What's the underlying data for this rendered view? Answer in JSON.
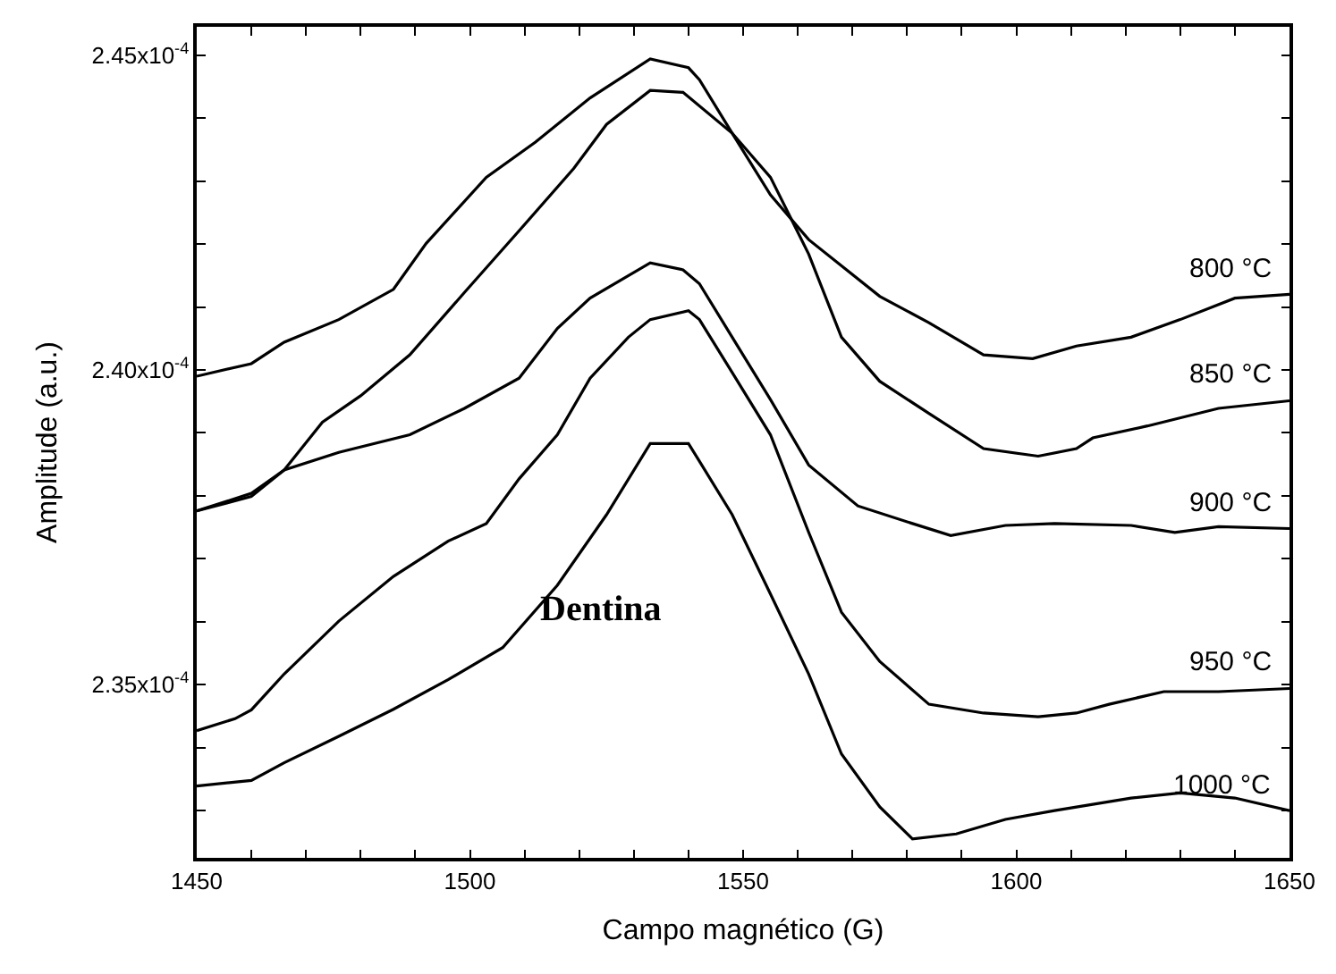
{
  "chart_data": {
    "type": "line",
    "xlabel": "Campo magnético (G)",
    "ylabel": "Amplitude (a.u.)",
    "annotations": [
      "Dentina"
    ],
    "xlim": [
      1450,
      1650
    ],
    "ylim": [
      0.00023225,
      0.00024545
    ],
    "xticks": [
      1450,
      {
        "value": 1460,
        "label": null
      },
      {
        "value": 1470,
        "label": null
      },
      {
        "value": 1480,
        "label": null
      },
      {
        "value": 1490,
        "label": null
      },
      1500,
      {
        "value": 1510,
        "label": null
      },
      {
        "value": 1520,
        "label": null
      },
      {
        "value": 1530,
        "label": null
      },
      {
        "value": 1540,
        "label": null
      },
      1550,
      {
        "value": 1560,
        "label": null
      },
      {
        "value": 1570,
        "label": null
      },
      {
        "value": 1580,
        "label": null
      },
      {
        "value": 1590,
        "label": null
      },
      1600,
      {
        "value": 1610,
        "label": null
      },
      {
        "value": 1620,
        "label": null
      },
      {
        "value": 1630,
        "label": null
      },
      {
        "value": 1640,
        "label": null
      },
      1650
    ],
    "yticks": [
      {
        "value": 0.000233,
        "label": null
      },
      {
        "value": 0.000234,
        "label": null
      },
      {
        "value": 0.000235,
        "label": "2.35x10$^{-4}$"
      },
      {
        "value": 0.000236,
        "label": null
      },
      {
        "value": 0.000237,
        "label": null
      },
      {
        "value": 0.000238,
        "label": null
      },
      {
        "value": 0.000239,
        "label": null
      },
      {
        "value": 0.00024,
        "label": "2.40x10$^{-4}$"
      },
      {
        "value": 0.000241,
        "label": null
      },
      {
        "value": 0.000242,
        "label": null
      },
      {
        "value": 0.000243,
        "label": null
      },
      {
        "value": 0.000244,
        "label": null
      },
      {
        "value": 0.000245,
        "label": "2.45x10$^{-4}$"
      }
    ],
    "legend": "right",
    "marker": "none",
    "line_style": "solid",
    "series": [
      {
        "name": "800 °C",
        "color": "#000000",
        "x": [
          1450,
          1460,
          1466,
          1476,
          1486,
          1492,
          1503,
          1512,
          1522,
          1533,
          1540,
          1542,
          1548,
          1555,
          1562,
          1575,
          1584,
          1594,
          1603,
          1611,
          1621,
          1630,
          1640,
          1650
        ],
        "values": [
          0.0002399,
          0.0002401,
          0.00024044,
          0.0002408,
          0.00024128,
          0.00024201,
          0.00024306,
          0.00024362,
          0.00024432,
          0.00024494,
          0.0002448,
          0.00024461,
          0.00024376,
          0.00024278,
          0.00024207,
          0.00024117,
          0.00024075,
          0.00024024,
          0.00024018,
          0.00024038,
          0.00024052,
          0.0002408,
          0.00024114,
          0.0002412
        ]
      },
      {
        "name": "850 °C",
        "color": "#000000",
        "x": [
          1450,
          1460,
          1466,
          1473,
          1480,
          1489,
          1499,
          1509,
          1519,
          1525,
          1533,
          1539,
          1548,
          1555,
          1562,
          1568,
          1575,
          1584,
          1594,
          1604,
          1611,
          1614,
          1624,
          1637,
          1650
        ],
        "values": [
          0.00023776,
          0.00023804,
          0.00023841,
          0.00023917,
          0.00023959,
          0.00024024,
          0.00024123,
          0.00024221,
          0.0002432,
          0.0002439,
          0.00024444,
          0.00024441,
          0.00024376,
          0.00024306,
          0.00024184,
          0.00024052,
          0.00023982,
          0.00023931,
          0.00023875,
          0.00023863,
          0.00023875,
          0.00023892,
          0.00023911,
          0.00023939,
          0.00023951
        ]
      },
      {
        "name": "900 °C",
        "color": "#000000",
        "x": [
          1450,
          1460,
          1466,
          1476,
          1489,
          1499,
          1509,
          1516,
          1522,
          1533,
          1539,
          1542,
          1548,
          1555,
          1562,
          1571,
          1581,
          1588,
          1598,
          1607,
          1621,
          1629,
          1637,
          1650
        ],
        "values": [
          0.00023776,
          0.00023799,
          0.00023841,
          0.00023869,
          0.00023897,
          0.00023939,
          0.00023987,
          0.00024066,
          0.00024114,
          0.0002417,
          0.00024159,
          0.00024137,
          0.00024052,
          0.00023953,
          0.00023849,
          0.00023784,
          0.00023756,
          0.00023737,
          0.00023753,
          0.00023756,
          0.00023753,
          0.00023742,
          0.00023751,
          0.00023748
        ]
      },
      {
        "name": "950 °C",
        "color": "#000000",
        "x": [
          1450,
          1457,
          1460,
          1466,
          1476,
          1486,
          1496,
          1503,
          1509,
          1516,
          1522,
          1529,
          1533,
          1540,
          1542,
          1548,
          1555,
          1562,
          1568,
          1575,
          1584,
          1594,
          1604,
          1611,
          1617,
          1627,
          1637,
          1650
        ],
        "values": [
          0.00023427,
          0.00023446,
          0.0002346,
          0.00023517,
          0.00023601,
          0.00023672,
          0.00023728,
          0.00023756,
          0.00023827,
          0.00023897,
          0.00023987,
          0.00024052,
          0.0002408,
          0.00024094,
          0.0002408,
          0.00023996,
          0.00023897,
          0.00023742,
          0.00023615,
          0.00023537,
          0.00023469,
          0.00023455,
          0.00023449,
          0.00023455,
          0.00023469,
          0.00023489,
          0.00023489,
          0.00023494
        ]
      },
      {
        "name": "1000 °C",
        "color": "#000000",
        "x": [
          1450,
          1460,
          1466,
          1476,
          1486,
          1496,
          1506,
          1516,
          1525,
          1533,
          1540,
          1542,
          1548,
          1555,
          1562,
          1568,
          1575,
          1581,
          1589,
          1598,
          1607,
          1621,
          1630,
          1640,
          1650
        ],
        "values": [
          0.00023339,
          0.00023348,
          0.00023376,
          0.00023418,
          0.00023461,
          0.00023508,
          0.00023559,
          0.00023658,
          0.0002377,
          0.00023883,
          0.00023883,
          0.00023855,
          0.0002377,
          0.00023644,
          0.00023517,
          0.0002339,
          0.00023306,
          0.00023255,
          0.00023263,
          0.00023286,
          0.000233,
          0.0002332,
          0.00023328,
          0.0002332,
          0.000233
        ]
      }
    ]
  }
}
